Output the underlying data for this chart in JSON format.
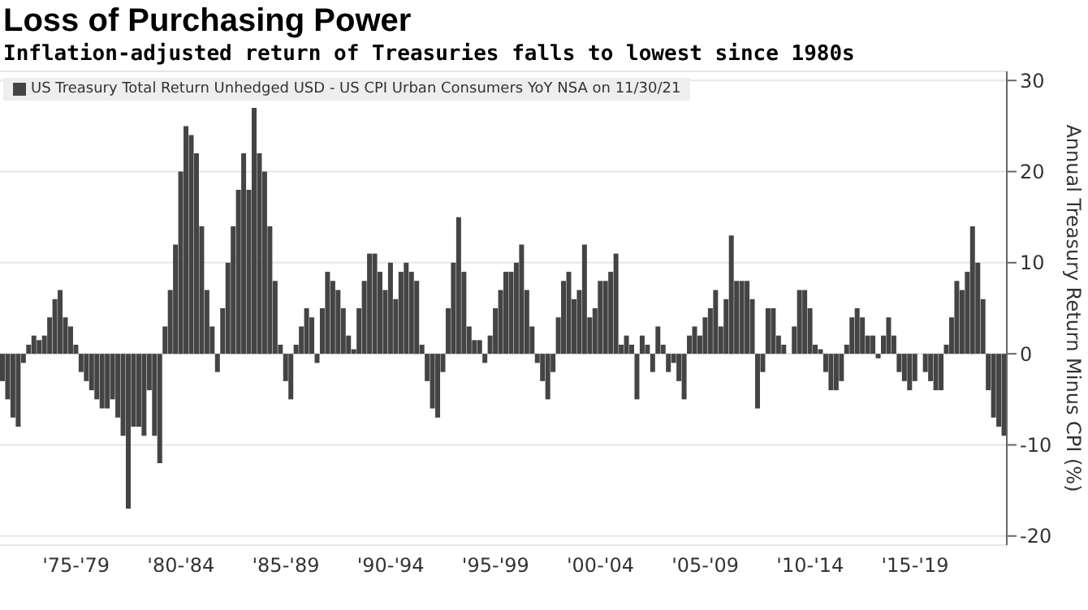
{
  "chart_data": {
    "type": "bar",
    "title": "Loss of Purchasing Power",
    "subtitle": "Inflation-adjusted return of Treasuries falls to lowest since 1980s",
    "ylabel": "Annual Treasury Return Minus CPI (%)",
    "categories": [
      null,
      null,
      null,
      null,
      null,
      null,
      null,
      null,
      null,
      null,
      null,
      null,
      null,
      null,
      "'75-'79",
      null,
      null,
      null,
      null,
      null,
      null,
      null,
      null,
      null,
      null,
      null,
      null,
      null,
      null,
      null,
      null,
      null,
      null,
      null,
      "'80-'84",
      null,
      null,
      null,
      null,
      null,
      null,
      null,
      null,
      null,
      null,
      null,
      null,
      null,
      null,
      null,
      null,
      null,
      null,
      null,
      "'85-'89",
      null,
      null,
      null,
      null,
      null,
      null,
      null,
      null,
      null,
      null,
      null,
      null,
      null,
      null,
      null,
      null,
      null,
      null,
      null,
      "'90-'94",
      null,
      null,
      null,
      null,
      null,
      null,
      null,
      null,
      null,
      null,
      null,
      null,
      null,
      null,
      null,
      null,
      null,
      null,
      null,
      "'95-'99",
      null,
      null,
      null,
      null,
      null,
      null,
      null,
      null,
      null,
      null,
      null,
      null,
      null,
      null,
      null,
      null,
      null,
      null,
      null,
      "'00-'04",
      null,
      null,
      null,
      null,
      null,
      null,
      null,
      null,
      null,
      null,
      null,
      null,
      null,
      null,
      null,
      null,
      null,
      null,
      null,
      "'05-'09",
      null,
      null,
      null,
      null,
      null,
      null,
      null,
      null,
      null,
      null,
      null,
      null,
      null,
      null,
      null,
      null,
      null,
      null,
      null,
      "'10-'14",
      null,
      null,
      null,
      null,
      null,
      null,
      null,
      null,
      null,
      null,
      null,
      null,
      null,
      null,
      null,
      null,
      null,
      null,
      null,
      "'15-'19",
      null,
      null,
      null,
      null,
      null,
      null,
      null,
      null,
      null,
      null,
      null,
      null,
      null,
      null,
      null,
      null,
      null
    ],
    "series": [
      {
        "name": "US Treasury Total Return Unhedged USD - US CPI Urban Consumers YoY NSA on 11/30/21",
        "color": "#444444",
        "values": [
          -3,
          -5,
          -7,
          -8,
          -1,
          1,
          2,
          1.5,
          2,
          4,
          6,
          7,
          4,
          3,
          1,
          -2,
          -3,
          -4,
          -5,
          -6,
          -6,
          -5,
          -7,
          -9,
          -17,
          -8,
          -8,
          -9,
          -4,
          -9,
          -12,
          3,
          7,
          12,
          20,
          25,
          24,
          22,
          14,
          7,
          3,
          -2,
          5,
          10,
          14,
          18,
          22,
          18,
          27,
          22,
          20,
          14,
          8,
          1,
          -3,
          -5,
          1,
          3,
          5,
          4,
          -1,
          5,
          9,
          8,
          7,
          5,
          2,
          0.5,
          5,
          8,
          11,
          11,
          9,
          7,
          10,
          6,
          9,
          10,
          9,
          8,
          1,
          -3,
          -6,
          -7,
          -2,
          5,
          10,
          15,
          9,
          3,
          1.5,
          1.5,
          -1,
          2,
          5,
          7,
          9,
          9,
          10,
          12,
          7,
          3,
          -1,
          -3,
          -5,
          -2,
          4,
          8,
          9,
          6,
          7,
          12,
          4,
          5,
          8,
          8,
          9,
          11,
          1,
          2,
          1,
          -5,
          2,
          1,
          -2,
          3,
          1,
          -2,
          -1,
          -3,
          -5,
          2,
          3,
          2,
          4,
          5,
          7,
          3,
          6,
          13,
          8,
          8,
          8,
          6,
          -6,
          -2,
          5,
          5,
          2,
          1,
          0,
          3,
          7,
          7,
          5,
          1,
          0.5,
          -2,
          -4,
          -4,
          -3,
          1,
          4,
          5,
          4,
          2,
          2,
          -0.5,
          2,
          4,
          2,
          -2,
          -3,
          -4,
          -3,
          0,
          -2,
          -3,
          -4,
          -4,
          1,
          4,
          8,
          7,
          9,
          14,
          10,
          6,
          -4,
          -7,
          -8,
          -9
        ]
      }
    ],
    "ylim": [
      -21,
      31
    ],
    "yticks": [
      -20,
      -10,
      0,
      10,
      20,
      30
    ],
    "grid": "y",
    "legend": "top left"
  }
}
